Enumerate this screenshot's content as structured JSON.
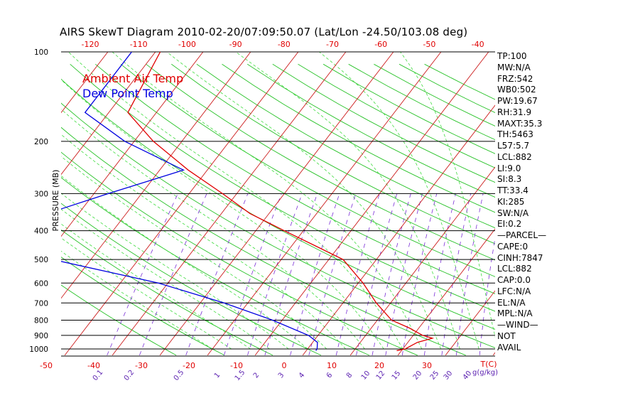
{
  "title": "AIRS SkewT Diagram 2010-02-20/07:09:50.07 (Lat/Lon -24.50/103.08 deg)",
  "legend": [
    {
      "label": "Ambient Air Temp",
      "color": "#e00000"
    },
    {
      "label": "Dew Point Temp",
      "color": "#0000e0"
    }
  ],
  "indices": [
    "TP:100",
    "MW:N/A",
    "FRZ:542",
    "WB0:502",
    "PW:19.67",
    "RH:31.9",
    "MAXT:35.3",
    "TH:5463",
    "L57:5.7",
    "LCL:882",
    "LI:9.0",
    "SI:8.3",
    "TT:33.4",
    "KI:285",
    "SW:N/A",
    "EI:0.2",
    "—PARCEL—",
    "CAPE:0",
    "CINH:7847",
    "LCL:882",
    "CAP:0.0",
    "LFC:N/A",
    "EL:N/A",
    "MPL:N/A",
    "—WIND—",
    "NOT",
    "AVAIL"
  ],
  "chart_data": {
    "type": "line",
    "title": "AIRS SkewT Diagram 2010-02-20/07:09:50.07 (Lat/Lon -24.50/103.08 deg)",
    "ylabel": "PRESSURE (MB)",
    "xlabel": "T(C)",
    "mixing_ratio_label": "g(g/kg)",
    "pressure_ticks": [
      100,
      200,
      300,
      400,
      500,
      600,
      700,
      800,
      900,
      1000
    ],
    "temp_ticks_bottom": [
      -50,
      -40,
      -30,
      -20,
      -10,
      0,
      10,
      20,
      30
    ],
    "temp_ticks_top": [
      -120,
      -110,
      -100,
      -90,
      -80,
      -70,
      -60,
      -50,
      -40
    ],
    "mixing_ratio_ticks": [
      "0.1",
      "0.2",
      "0.5",
      "1",
      "1.5",
      "2",
      "3",
      "4",
      "6",
      "8",
      "10",
      "12",
      "15",
      "20",
      "25",
      "30",
      "40"
    ],
    "series": [
      {
        "name": "Ambient Air Temp",
        "color": "#e00000",
        "points": [
          [
            100,
            -79
          ],
          [
            160,
            -76
          ],
          [
            200,
            -66
          ],
          [
            250,
            -54
          ],
          [
            300,
            -43
          ],
          [
            350,
            -34
          ],
          [
            400,
            -24
          ],
          [
            450,
            -15
          ],
          [
            500,
            -7
          ],
          [
            600,
            1
          ],
          [
            700,
            7
          ],
          [
            800,
            13
          ],
          [
            850,
            18
          ],
          [
            900,
            22
          ],
          [
            920,
            24.5
          ],
          [
            950,
            22
          ],
          [
            1000,
            20.5
          ],
          [
            1013,
            19
          ]
        ]
      },
      {
        "name": "Dew Point Temp",
        "color": "#0000e0",
        "points": [
          [
            100,
            -85
          ],
          [
            160,
            -85
          ],
          [
            200,
            -72
          ],
          [
            250,
            -55
          ],
          [
            300,
            -67
          ],
          [
            400,
            -85
          ],
          [
            500,
            -68
          ],
          [
            600,
            -42
          ],
          [
            700,
            -25
          ],
          [
            800,
            -12
          ],
          [
            900,
            -2
          ],
          [
            950,
            1
          ],
          [
            1000,
            2
          ],
          [
            1013,
            2
          ]
        ]
      }
    ]
  }
}
